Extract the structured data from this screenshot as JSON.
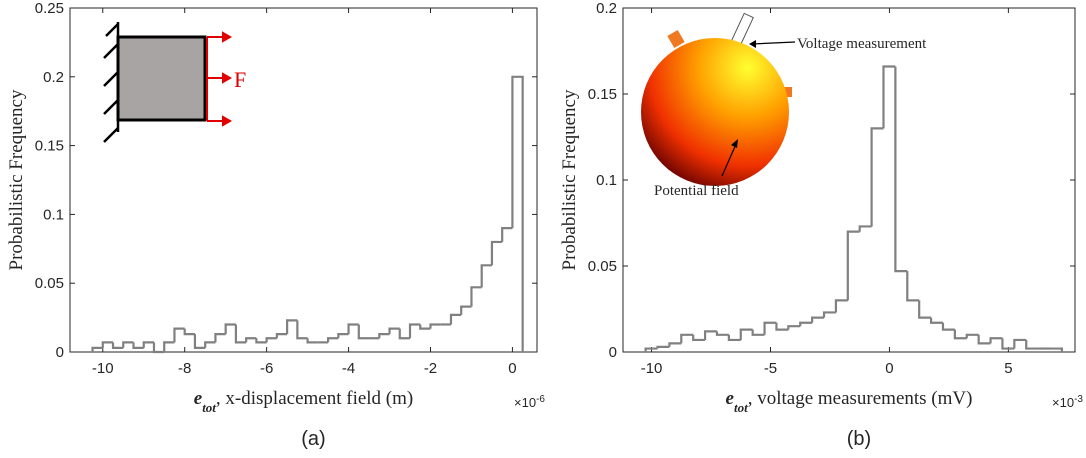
{
  "chart_data": [
    {
      "type": "histogram",
      "color": "#808080",
      "bins": [
        -10.25,
        -10,
        -9.75,
        -9.5,
        -9.25,
        -9,
        -8.75,
        -8.5,
        -8.25,
        -8,
        -7.75,
        -7.5,
        -7.25,
        -7,
        -6.75,
        -6.5,
        -6.25,
        -6,
        -5.75,
        -5.5,
        -5.25,
        -5,
        -4.75,
        -4.5,
        -4.25,
        -4,
        -3.75,
        -3.5,
        -3.25,
        -3,
        -2.75,
        -2.5,
        -2.25,
        -2,
        -1.75,
        -1.5,
        -1.25,
        -1,
        -0.75,
        -0.5,
        -0.25,
        0,
        0.25
      ],
      "values": [
        0.003,
        0.007,
        0.003,
        0.007,
        0.003,
        0.007,
        0,
        0.007,
        0.017,
        0.013,
        0.003,
        0.007,
        0.013,
        0.02,
        0.007,
        0.01,
        0.007,
        0.01,
        0.013,
        0.023,
        0.01,
        0.007,
        0.007,
        0.01,
        0.013,
        0.02,
        0.01,
        0.01,
        0.013,
        0.017,
        0.01,
        0.02,
        0.017,
        0.02,
        0.02,
        0.027,
        0.033,
        0.047,
        0.063,
        0.08,
        0.09,
        0.2
      ],
      "xlim": [
        -10.8,
        0.6
      ],
      "xticks": [
        -10,
        -8,
        -6,
        -4,
        -2,
        0
      ],
      "ylim": [
        0,
        0.25
      ],
      "yticks": [
        0,
        0.05,
        0.1,
        0.15,
        0.2,
        0.25
      ],
      "ylabel": "Probabilistic Frequency",
      "xlabel_symbol": "e",
      "xlabel_subscript": "tot",
      "xlabel": ", x-displacement field (m)",
      "x_multiplier": "×10",
      "x_exponent": "-6",
      "annotations": [
        "F"
      ],
      "caption": "(a)"
    },
    {
      "type": "histogram",
      "color": "#808080",
      "bins": [
        -10.25,
        -9.75,
        -9.25,
        -8.75,
        -8.25,
        -7.75,
        -7.25,
        -6.75,
        -6.25,
        -5.75,
        -5.25,
        -4.75,
        -4.25,
        -3.75,
        -3.25,
        -2.75,
        -2.25,
        -1.75,
        -1.25,
        -0.75,
        -0.25,
        0.25,
        0.75,
        1.25,
        1.75,
        2.25,
        2.75,
        3.25,
        3.75,
        4.25,
        4.75,
        5.25,
        5.75,
        6.25,
        6.75,
        7.25
      ],
      "values": [
        0.002,
        0.003,
        0.005,
        0.01,
        0.007,
        0.012,
        0.01,
        0.007,
        0.013,
        0.01,
        0.017,
        0.013,
        0.015,
        0.017,
        0.02,
        0.023,
        0.03,
        0.07,
        0.073,
        0.13,
        0.166,
        0.047,
        0.03,
        0.02,
        0.017,
        0.013,
        0.008,
        0.01,
        0.005,
        0.008,
        0.002,
        0.007,
        0.002,
        0.002,
        0.002
      ],
      "xlim": [
        -11.2,
        7.8
      ],
      "xticks": [
        -10,
        -5,
        0,
        5
      ],
      "ylim": [
        0,
        0.2
      ],
      "yticks": [
        0,
        0.05,
        0.1,
        0.15,
        0.2
      ],
      "ylabel": "Probabilistic Frequency",
      "xlabel_symbol": "e",
      "xlabel_subscript": "tot",
      "xlabel": ", voltage measurements (mV)",
      "x_multiplier": "×10",
      "x_exponent": "-3",
      "annotations": [
        "Voltage measurement",
        "Potential field"
      ],
      "caption": "(b)"
    }
  ]
}
